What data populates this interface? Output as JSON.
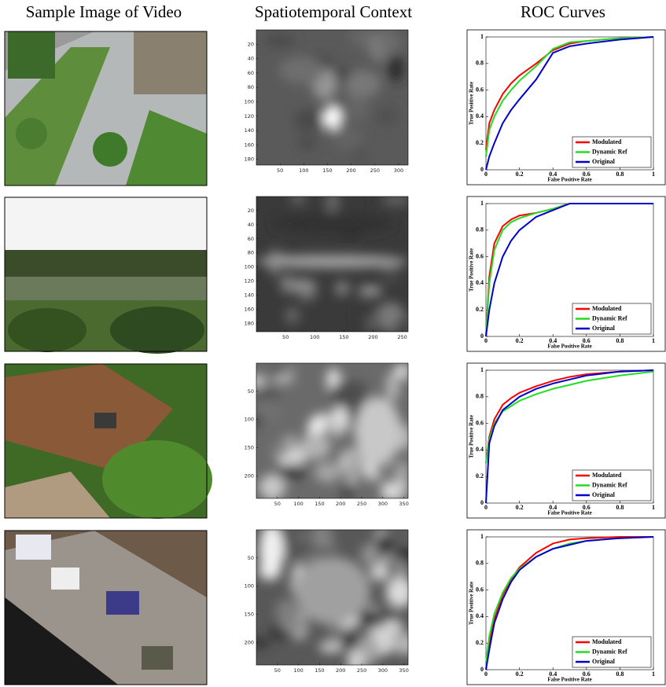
{
  "headers": [
    "Sample Image of Video",
    "Spatiotemporal Context",
    "ROC Curves"
  ],
  "heatmaps": [
    {
      "xlim": [
        0,
        320
      ],
      "ylim": [
        0,
        188
      ],
      "xticks": [
        50,
        100,
        150,
        200,
        250,
        300
      ],
      "yticks": [
        20,
        40,
        60,
        80,
        100,
        120,
        140,
        160,
        180
      ]
    },
    {
      "xlim": [
        0,
        260
      ],
      "ylim": [
        0,
        192
      ],
      "xticks": [
        50,
        100,
        150,
        200,
        250
      ],
      "yticks": [
        20,
        40,
        60,
        80,
        100,
        120,
        140,
        160,
        180
      ]
    },
    {
      "xlim": [
        0,
        360
      ],
      "ylim": [
        0,
        240
      ],
      "xticks": [
        50,
        100,
        150,
        200,
        250,
        300,
        350
      ],
      "yticks": [
        50,
        100,
        150,
        200
      ]
    },
    {
      "xlim": [
        0,
        360
      ],
      "ylim": [
        0,
        240
      ],
      "xticks": [
        50,
        100,
        150,
        200,
        250,
        300,
        350
      ],
      "yticks": [
        50,
        100,
        150,
        200
      ]
    }
  ],
  "chart_data": [
    {
      "type": "line",
      "xlabel": "False Positive Rate",
      "ylabel": "True Positive Rate",
      "xlim": [
        0,
        1
      ],
      "ylim": [
        0,
        1
      ],
      "xticks": [
        0,
        0.2,
        0.4,
        0.6,
        0.8,
        1
      ],
      "yticks": [
        0,
        0.2,
        0.4,
        0.6,
        0.8,
        1
      ],
      "legend": "lower right",
      "x": [
        0,
        0.02,
        0.05,
        0.1,
        0.15,
        0.2,
        0.3,
        0.4,
        0.5,
        0.6,
        0.8,
        1
      ],
      "series": [
        {
          "name": "Modulated",
          "color": "#ff0000",
          "values": [
            0.15,
            0.35,
            0.45,
            0.57,
            0.65,
            0.71,
            0.8,
            0.9,
            0.95,
            0.97,
            0.99,
            1
          ]
        },
        {
          "name": "Dynamic Ref",
          "color": "#22dd22",
          "values": [
            0.1,
            0.3,
            0.4,
            0.52,
            0.6,
            0.67,
            0.78,
            0.91,
            0.96,
            0.97,
            0.99,
            1
          ]
        },
        {
          "name": "Original",
          "color": "#0000cc",
          "values": [
            0,
            0.1,
            0.2,
            0.35,
            0.45,
            0.53,
            0.68,
            0.88,
            0.93,
            0.95,
            0.98,
            1
          ]
        }
      ]
    },
    {
      "type": "line",
      "xlabel": "False Positive Rate",
      "ylabel": "True Positive Rate",
      "xlim": [
        0,
        1
      ],
      "ylim": [
        0,
        1
      ],
      "xticks": [
        0,
        0.2,
        0.4,
        0.6,
        0.8,
        1
      ],
      "yticks": [
        0,
        0.2,
        0.4,
        0.6,
        0.8,
        1
      ],
      "legend": "lower right",
      "x": [
        0,
        0.02,
        0.05,
        0.1,
        0.15,
        0.2,
        0.3,
        0.4,
        0.5,
        0.6,
        0.8,
        1
      ],
      "series": [
        {
          "name": "Modulated",
          "color": "#ff0000",
          "values": [
            0,
            0.45,
            0.7,
            0.83,
            0.88,
            0.91,
            0.93,
            0.96,
            1,
            1,
            1,
            1
          ]
        },
        {
          "name": "Dynamic Ref",
          "color": "#22dd22",
          "values": [
            0,
            0.4,
            0.65,
            0.8,
            0.86,
            0.89,
            0.93,
            0.96,
            1,
            1,
            1,
            1
          ]
        },
        {
          "name": "Original",
          "color": "#0000cc",
          "values": [
            0,
            0.2,
            0.4,
            0.6,
            0.72,
            0.8,
            0.9,
            0.95,
            1,
            1,
            1,
            1
          ]
        }
      ]
    },
    {
      "type": "line",
      "xlabel": "False Positive Rate",
      "ylabel": "True Positive Rate",
      "xlim": [
        0,
        1
      ],
      "ylim": [
        0,
        1
      ],
      "xticks": [
        0,
        0.2,
        0.4,
        0.6,
        0.8,
        1
      ],
      "yticks": [
        0,
        0.2,
        0.4,
        0.6,
        0.8,
        1
      ],
      "legend": "lower right",
      "x": [
        0,
        0.02,
        0.05,
        0.1,
        0.15,
        0.2,
        0.3,
        0.4,
        0.5,
        0.6,
        0.8,
        1
      ],
      "series": [
        {
          "name": "Modulated",
          "color": "#ff0000",
          "values": [
            0.3,
            0.5,
            0.63,
            0.74,
            0.79,
            0.83,
            0.88,
            0.92,
            0.95,
            0.97,
            0.99,
            1
          ]
        },
        {
          "name": "Dynamic Ref",
          "color": "#22dd22",
          "values": [
            0.3,
            0.48,
            0.6,
            0.69,
            0.73,
            0.77,
            0.82,
            0.86,
            0.89,
            0.92,
            0.96,
            0.99
          ]
        },
        {
          "name": "Original",
          "color": "#0000cc",
          "values": [
            0,
            0.45,
            0.58,
            0.7,
            0.75,
            0.8,
            0.86,
            0.9,
            0.93,
            0.96,
            0.99,
            1
          ]
        }
      ]
    },
    {
      "type": "line",
      "xlabel": "False Positive Rate",
      "ylabel": "True Positive Rate",
      "xlim": [
        0,
        1
      ],
      "ylim": [
        0,
        1
      ],
      "xticks": [
        0,
        0.2,
        0.4,
        0.6,
        0.8,
        1
      ],
      "yticks": [
        0,
        0.2,
        0.4,
        0.6,
        0.8,
        1
      ],
      "legend": "lower right",
      "x": [
        0,
        0.02,
        0.05,
        0.1,
        0.15,
        0.2,
        0.3,
        0.4,
        0.5,
        0.6,
        0.8,
        1
      ],
      "series": [
        {
          "name": "Modulated",
          "color": "#ff0000",
          "values": [
            0,
            0.2,
            0.38,
            0.56,
            0.68,
            0.77,
            0.88,
            0.95,
            0.98,
            0.99,
            1,
            1
          ]
        },
        {
          "name": "Dynamic Ref",
          "color": "#22dd22",
          "values": [
            0.05,
            0.25,
            0.42,
            0.58,
            0.69,
            0.76,
            0.85,
            0.91,
            0.95,
            0.97,
            0.99,
            1
          ]
        },
        {
          "name": "Original",
          "color": "#0000cc",
          "values": [
            0,
            0.15,
            0.35,
            0.53,
            0.66,
            0.75,
            0.85,
            0.91,
            0.94,
            0.97,
            0.99,
            1
          ]
        }
      ]
    }
  ]
}
